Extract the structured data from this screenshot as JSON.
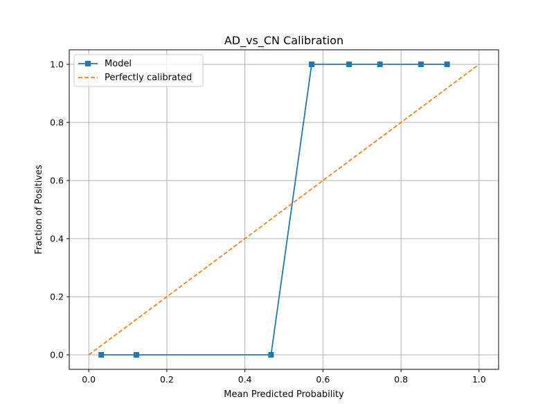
{
  "chart_data": {
    "type": "line",
    "title": "AD_vs_CN Calibration",
    "xlabel": "Mean Predicted Probability",
    "ylabel": "Fraction of Positives",
    "xlim": [
      -0.05,
      1.05
    ],
    "ylim": [
      -0.05,
      1.05
    ],
    "xticks": [
      0.0,
      0.2,
      0.4,
      0.6,
      0.8,
      1.0
    ],
    "yticks": [
      0.0,
      0.2,
      0.4,
      0.6,
      0.8,
      1.0
    ],
    "xtick_labels": [
      "0.0",
      "0.2",
      "0.4",
      "0.6",
      "0.8",
      "1.0"
    ],
    "ytick_labels": [
      "0.0",
      "0.2",
      "0.4",
      "0.6",
      "0.8",
      "1.0"
    ],
    "grid": true,
    "legend_position": "top-left",
    "series": [
      {
        "name": "Model",
        "color": "#1f77b4",
        "style": "solid",
        "marker": "square",
        "x": [
          0.032,
          0.122,
          0.467,
          0.571,
          0.667,
          0.746,
          0.851,
          0.918
        ],
        "y": [
          0.0,
          0.0,
          0.0,
          1.0,
          1.0,
          1.0,
          1.0,
          1.0
        ]
      },
      {
        "name": "Perfectly calibrated",
        "color": "#ff7f0e",
        "style": "dashed",
        "marker": "none",
        "x": [
          0.0,
          1.0
        ],
        "y": [
          0.0,
          1.0
        ]
      }
    ]
  }
}
